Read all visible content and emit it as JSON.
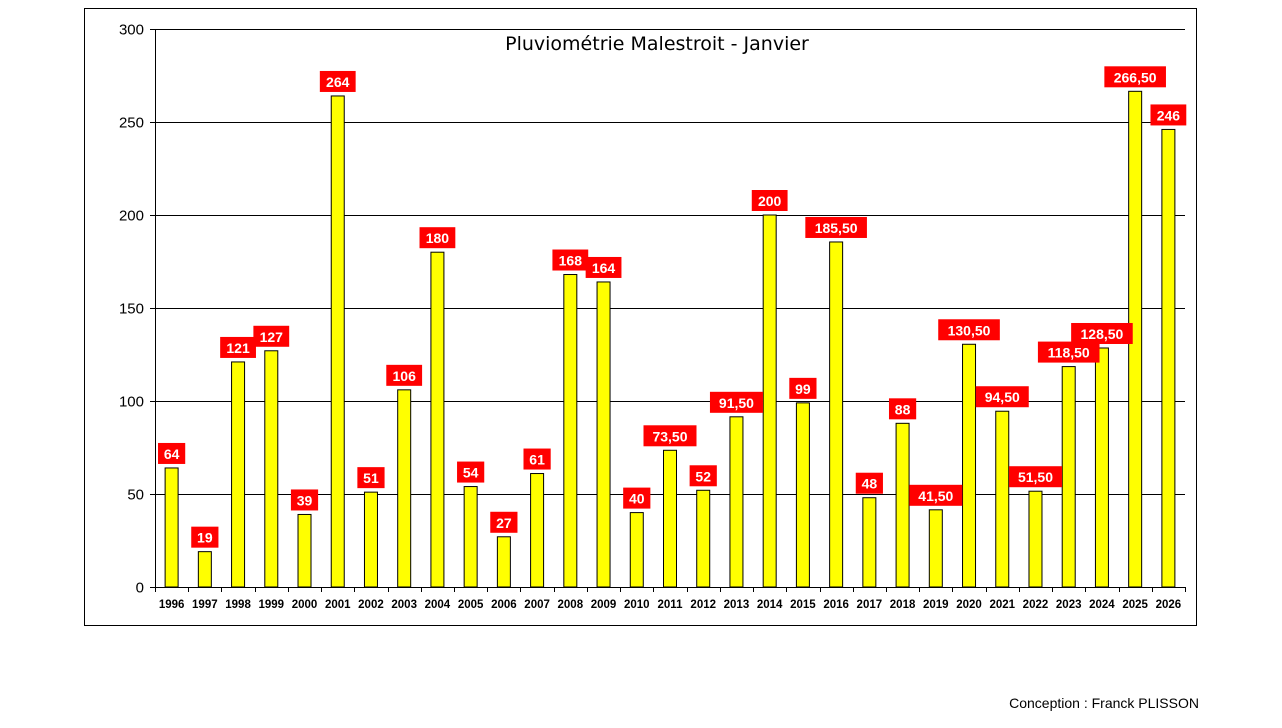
{
  "chart_data": {
    "type": "bar",
    "title": "Pluviométrie Malestroit - Janvier",
    "xlabel": "",
    "ylabel": "",
    "ylim": [
      0,
      300
    ],
    "yticks": [
      0,
      50,
      100,
      150,
      200,
      250,
      300
    ],
    "grid": true,
    "categories": [
      "1996",
      "1997",
      "1998",
      "1999",
      "2000",
      "2001",
      "2002",
      "2003",
      "2004",
      "2005",
      "2006",
      "2007",
      "2008",
      "2009",
      "2010",
      "2011",
      "2012",
      "2013",
      "2014",
      "2015",
      "2016",
      "2017",
      "2018",
      "2019",
      "2020",
      "2021",
      "2022",
      "2023",
      "2024",
      "2025",
      "2026"
    ],
    "values": [
      64,
      19,
      121,
      127,
      39,
      264,
      51,
      106,
      180,
      54,
      27,
      61,
      168,
      164,
      40,
      73.5,
      52,
      91.5,
      200,
      99,
      185.5,
      48,
      88,
      41.5,
      130.5,
      94.5,
      51.5,
      118.5,
      128.5,
      266.5,
      246
    ],
    "data_labels": [
      "64",
      "19",
      "121",
      "127",
      "39",
      "264",
      "51",
      "106",
      "180",
      "54",
      "27",
      "61",
      "168",
      "164",
      "40",
      "73,50",
      "52",
      "91,50",
      "200",
      "99",
      "185,50",
      "48",
      "88",
      "41,50",
      "130,50",
      "94,50",
      "51,50",
      "118,50",
      "128,50",
      "266,50",
      "246"
    ],
    "colors": {
      "bar": "#FFFF00",
      "label_bg": "#FF0000",
      "label_text": "#FFFFFF"
    }
  },
  "footer": "Conception : Franck PLISSON"
}
